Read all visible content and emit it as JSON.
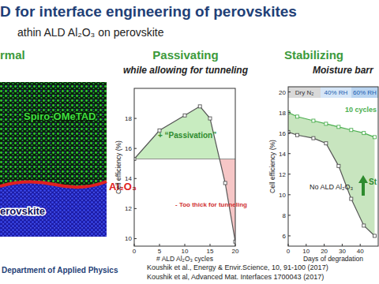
{
  "slide": {
    "title": "D for interface engineering of perovskites",
    "subtitle": "athin ALD Al₂O₃ on perovskite",
    "panels": [
      {
        "heading": "rmal",
        "labels": [
          "Spiro-OMeTAD",
          "Al₂O₃",
          "erovskite"
        ]
      },
      {
        "heading": "Passivating",
        "subheading": "while allowing for tunneling"
      },
      {
        "heading": "Stabilizing",
        "subheading": "Moisture barr"
      }
    ],
    "footer": {
      "department": "Department of Applied Physics",
      "references": [
        "Koushik et al., Energy & Envir.Science, 10, 91-100 (2017)",
        "Koushik et al, Advanced Mat. Interfaces 1700043 (2017)"
      ]
    }
  },
  "chart_data": [
    {
      "type": "line",
      "xlabel": "# ALD Al₂O₃ cycles",
      "ylabel": "Cell efficiency (%)",
      "x": [
        0,
        5,
        10,
        13,
        15,
        18,
        20
      ],
      "values": [
        15.3,
        17.2,
        18.2,
        18.8,
        18.0,
        13.7,
        9.8
      ],
      "color": "#555555",
      "marker": "square",
      "baseline": 15.3,
      "annotations": [
        "+ “Passivation”",
        "- Too thick for tunneling"
      ],
      "xlim": [
        0,
        20
      ],
      "xticks": [
        0,
        5,
        10,
        15,
        20
      ],
      "ylim": [
        9.5,
        20
      ],
      "yticks": [
        10,
        12,
        14,
        16,
        18
      ]
    },
    {
      "type": "line",
      "xlabel": "Days of degradation",
      "ylabel": "Cell efficiency (%)",
      "x": [
        0,
        5,
        14,
        21,
        28,
        35,
        42,
        48
      ],
      "series": [
        {
          "name": "10 cycles",
          "color": "#4caf50",
          "values": [
            18.0,
            17.6,
            17.2,
            16.9,
            16.6,
            16.3,
            16.0,
            15.6
          ]
        },
        {
          "name": "No ALD Al₂O₃",
          "color": "#555555",
          "values": [
            16.1,
            15.8,
            15.5,
            15.0,
            12.8,
            9.6,
            7.0,
            6.0
          ]
        }
      ],
      "marker": "square",
      "phases": [
        {
          "label": "Dry N₂",
          "start": 0,
          "end": 18
        },
        {
          "label": "40% RH",
          "start": 18,
          "end": 35
        },
        {
          "label": "60% RH",
          "start": 35,
          "end": 50
        }
      ],
      "annotation": "St",
      "xlim": [
        0,
        50
      ],
      "xticks": [
        0,
        10,
        20,
        30,
        40
      ],
      "ylim": [
        5,
        20.5
      ],
      "yticks": [
        6,
        8,
        10,
        12,
        14,
        16,
        18,
        20
      ]
    }
  ]
}
